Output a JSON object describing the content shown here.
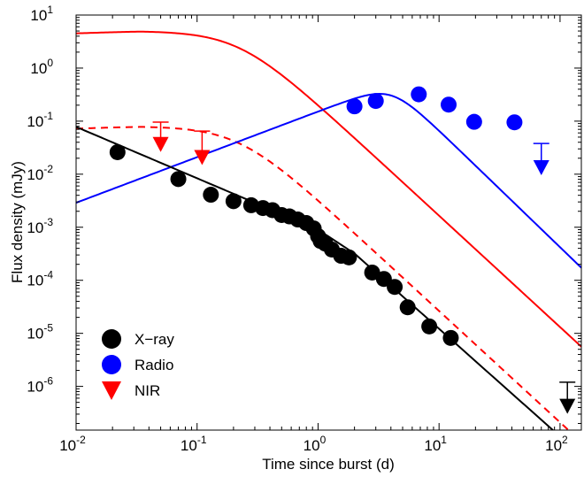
{
  "chart_data": {
    "type": "scatter",
    "title": "",
    "xlabel": "Time since burst  (d)",
    "ylabel": "Flux density  (mJy)",
    "xscale": "log",
    "yscale": "log",
    "xlim": [
      0.01,
      150
    ],
    "ylim": [
      1.5e-07,
      10
    ],
    "grid": false,
    "legend_position": "bottom-left",
    "x_ticks": [
      {
        "value": 0.01,
        "mantissa": "10",
        "exponent": "-2"
      },
      {
        "value": 0.1,
        "mantissa": "10",
        "exponent": "-1"
      },
      {
        "value": 1,
        "mantissa": "10",
        "exponent": "0"
      },
      {
        "value": 10,
        "mantissa": "10",
        "exponent": "1"
      },
      {
        "value": 100,
        "mantissa": "10",
        "exponent": "2"
      }
    ],
    "y_ticks": [
      {
        "value": 10,
        "mantissa": "10",
        "exponent": "1"
      },
      {
        "value": 1,
        "mantissa": "10",
        "exponent": "0"
      },
      {
        "value": 0.1,
        "mantissa": "10",
        "exponent": "-1"
      },
      {
        "value": 0.01,
        "mantissa": "10",
        "exponent": "-2"
      },
      {
        "value": 0.001,
        "mantissa": "10",
        "exponent": "-3"
      },
      {
        "value": 0.0001,
        "mantissa": "10",
        "exponent": "-4"
      },
      {
        "value": 1e-05,
        "mantissa": "10",
        "exponent": "-5"
      },
      {
        "value": 1e-06,
        "mantissa": "10",
        "exponent": "-6"
      }
    ],
    "legend": [
      {
        "label": "X−ray",
        "marker": "circle",
        "color": "#000000"
      },
      {
        "label": "Radio",
        "marker": "circle",
        "color": "#0000ff"
      },
      {
        "label": "NIR",
        "marker": "triangle-down",
        "color": "#ff0000"
      }
    ],
    "series": [
      {
        "name": "X−ray",
        "color": "#000000",
        "marker": "circle",
        "points": [
          [
            0.022,
            0.026
          ],
          [
            0.07,
            0.0081
          ],
          [
            0.13,
            0.0041
          ],
          [
            0.2,
            0.0031
          ],
          [
            0.28,
            0.0026
          ],
          [
            0.35,
            0.0023
          ],
          [
            0.42,
            0.0021
          ],
          [
            0.5,
            0.0017
          ],
          [
            0.58,
            0.0016
          ],
          [
            0.68,
            0.0014
          ],
          [
            0.8,
            0.0012
          ],
          [
            0.92,
            0.00095
          ],
          [
            1.0,
            0.00068
          ],
          [
            1.05,
            0.00055
          ],
          [
            1.15,
            0.00049
          ],
          [
            1.3,
            0.00038
          ],
          [
            1.55,
            0.00029
          ],
          [
            1.8,
            0.00027
          ],
          [
            2.8,
            0.00014
          ],
          [
            3.5,
            0.000106
          ],
          [
            4.3,
            7.5e-05
          ],
          [
            5.5,
            3.1e-05
          ],
          [
            8.3,
            1.35e-05
          ],
          [
            12.5,
            8.2e-06
          ]
        ],
        "upper_limits": [
          {
            "x": 115,
            "y": 4.3e-07,
            "cap": 1.2e-06
          }
        ],
        "model": [
          [
            0.01,
            0.078
          ],
          [
            1.0,
            0.0009
          ],
          [
            2.0,
            0.00032
          ],
          [
            150,
            5e-08
          ]
        ]
      },
      {
        "name": "Radio",
        "color": "#0000ff",
        "marker": "circle",
        "points": [
          [
            2.0,
            0.19
          ],
          [
            3.0,
            0.24
          ],
          [
            6.8,
            0.32
          ],
          [
            12.0,
            0.205
          ],
          [
            19.5,
            0.097
          ],
          [
            42,
            0.095
          ]
        ],
        "upper_limits": [
          {
            "x": 70,
            "y": 0.0135,
            "cap": 0.038
          }
        ],
        "model": {
          "peak_time": 4.0,
          "peak_flux": 0.25,
          "rise_slope": 0.86,
          "late_slope": -2.2
        }
      },
      {
        "name": "NIR",
        "color": "#ff0000",
        "marker": "triangle-down",
        "points": [],
        "upper_limits": [
          {
            "x": 0.05,
            "y": 0.037,
            "cap": 0.096
          },
          {
            "x": 0.11,
            "y": 0.021,
            "cap": 0.065
          }
        ],
        "model": {
          "peak_flux": 5.0,
          "peak_time": 0.035
        },
        "model_dashed": {
          "peak_flux": 0.08,
          "peak_time": 0.035
        }
      }
    ]
  }
}
